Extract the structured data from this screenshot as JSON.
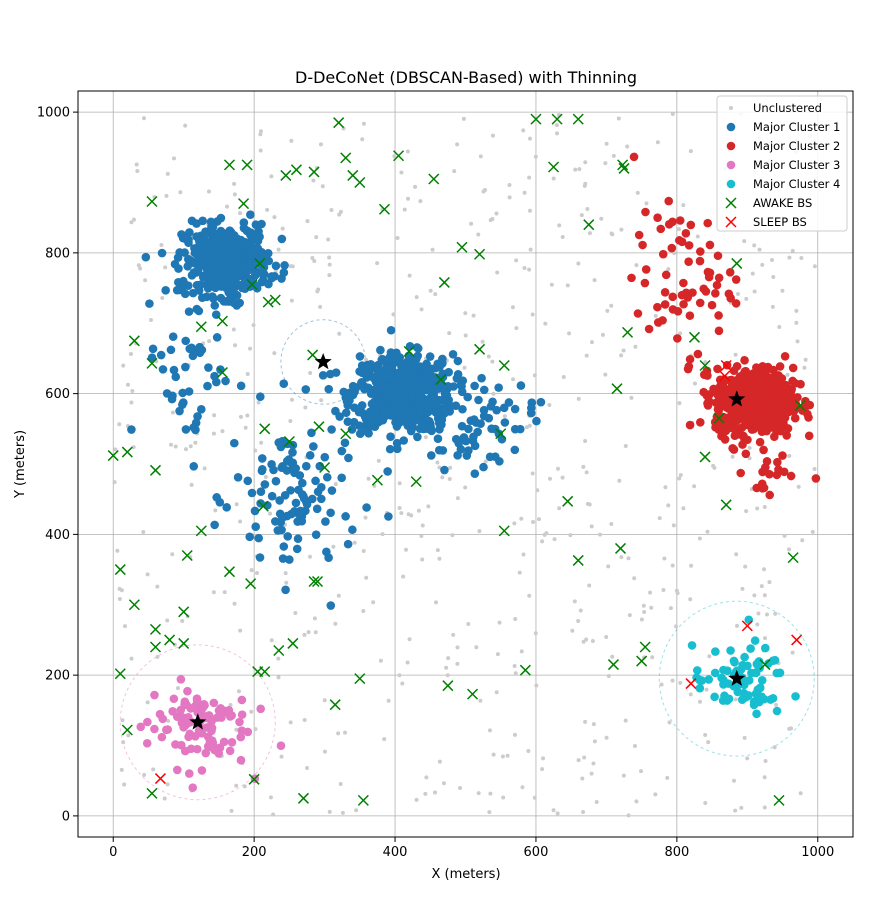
{
  "chart_data": {
    "type": "scatter",
    "title": "D-DeCoNet (DBSCAN-Based) with Thinning",
    "xlabel": "X (meters)",
    "ylabel": "Y (meters)",
    "xlim": [
      -50,
      1050
    ],
    "ylim": [
      -30,
      1030
    ],
    "xticks": [
      0,
      200,
      400,
      600,
      800,
      1000
    ],
    "yticks": [
      0,
      200,
      400,
      600,
      800,
      1000
    ],
    "grid": true,
    "legend_position": "top-right",
    "legend": [
      "Unclustered",
      "Major Cluster 1",
      "Major Cluster 2",
      "Major Cluster 3",
      "Major Cluster 4",
      "AWAKE BS",
      "SLEEP BS"
    ],
    "colors": {
      "unclustered": "#cccccc",
      "cluster1": "#1f77b4",
      "cluster2": "#d62728",
      "cluster3": "#e377c2",
      "cluster4": "#17becf",
      "awake": "#008000",
      "sleep": "#ff0000",
      "centroid": "#000000"
    },
    "clusters": [
      {
        "name": "Major Cluster 1",
        "color": "#1f77b4",
        "blobs": [
          {
            "center": [
              410,
              600
            ],
            "spread": [
              65,
              50
            ],
            "count": 520
          },
          {
            "center": [
              160,
              790
            ],
            "spread": [
              55,
              45
            ],
            "count": 420
          }
        ],
        "sparse": [
          {
            "center": [
              260,
              450
            ],
            "spread": [
              80,
              110
            ],
            "count": 110
          },
          {
            "center": [
              510,
              560
            ],
            "spread": [
              80,
              60
            ],
            "count": 70
          },
          {
            "center": [
              110,
              650
            ],
            "spread": [
              60,
              120
            ],
            "count": 50
          }
        ]
      },
      {
        "name": "Major Cluster 2",
        "color": "#d62728",
        "blobs": [
          {
            "center": [
              910,
              590
            ],
            "spread": [
              50,
              42
            ],
            "count": 600
          }
        ],
        "sparse": [
          {
            "center": [
              810,
              760
            ],
            "spread": [
              65,
              90
            ],
            "count": 65
          },
          {
            "center": [
              920,
              490
            ],
            "spread": [
              50,
              45
            ],
            "count": 20
          }
        ]
      },
      {
        "name": "Major Cluster 3",
        "color": "#e377c2",
        "blobs": [],
        "sparse": [
          {
            "center": [
              120,
              130
            ],
            "spread": [
              65,
              55
            ],
            "count": 95
          }
        ]
      },
      {
        "name": "Major Cluster 4",
        "color": "#17becf",
        "blobs": [],
        "sparse": [
          {
            "center": [
              890,
              190
            ],
            "spread": [
              60,
              45
            ],
            "count": 75
          }
        ]
      }
    ],
    "unclustered_count": 620,
    "centroids": [
      [
        298,
        645
      ],
      [
        885,
        592
      ],
      [
        120,
        133
      ],
      [
        885,
        195
      ]
    ],
    "coverage_circles": [
      {
        "center": [
          298,
          645
        ],
        "radius": 60,
        "color": "#1f77b4"
      },
      {
        "center": [
          120,
          133
        ],
        "radius": 110,
        "color": "#e377c2"
      },
      {
        "center": [
          885,
          195
        ],
        "radius": 110,
        "color": "#17becf"
      }
    ],
    "awake_bs": [
      [
        165,
        925
      ],
      [
        190,
        925
      ],
      [
        245,
        910
      ],
      [
        260,
        918
      ],
      [
        285,
        915
      ],
      [
        320,
        985
      ],
      [
        330,
        935
      ],
      [
        340,
        910
      ],
      [
        350,
        900
      ],
      [
        405,
        938
      ],
      [
        455,
        905
      ],
      [
        385,
        862
      ],
      [
        55,
        873
      ],
      [
        185,
        870
      ],
      [
        208,
        785
      ],
      [
        220,
        730
      ],
      [
        230,
        733
      ],
      [
        197,
        755
      ],
      [
        125,
        695
      ],
      [
        155,
        703
      ],
      [
        155,
        630
      ],
      [
        30,
        675
      ],
      [
        55,
        643
      ],
      [
        283,
        655
      ],
      [
        330,
        543
      ],
      [
        420,
        660
      ],
      [
        465,
        620
      ],
      [
        470,
        758
      ],
      [
        495,
        808
      ],
      [
        520,
        798
      ],
      [
        520,
        663
      ],
      [
        550,
        543
      ],
      [
        555,
        640
      ],
      [
        600,
        990
      ],
      [
        630,
        990
      ],
      [
        660,
        990
      ],
      [
        625,
        922
      ],
      [
        723,
        925
      ],
      [
        725,
        920
      ],
      [
        675,
        840
      ],
      [
        885,
        785
      ],
      [
        730,
        687
      ],
      [
        825,
        680
      ],
      [
        840,
        640
      ],
      [
        860,
        565
      ],
      [
        840,
        510
      ],
      [
        870,
        442
      ],
      [
        975,
        583
      ],
      [
        965,
        367
      ],
      [
        715,
        607
      ],
      [
        645,
        447
      ],
      [
        660,
        363
      ],
      [
        720,
        380
      ],
      [
        555,
        405
      ],
      [
        430,
        475
      ],
      [
        375,
        477
      ],
      [
        300,
        495
      ],
      [
        292,
        553
      ],
      [
        250,
        532
      ],
      [
        215,
        550
      ],
      [
        213,
        440
      ],
      [
        0,
        512
      ],
      [
        20,
        517
      ],
      [
        60,
        491
      ],
      [
        125,
        405
      ],
      [
        105,
        370
      ],
      [
        10,
        350
      ],
      [
        30,
        300
      ],
      [
        165,
        347
      ],
      [
        195,
        330
      ],
      [
        100,
        290
      ],
      [
        290,
        333
      ],
      [
        285,
        333
      ],
      [
        205,
        205
      ],
      [
        235,
        235
      ],
      [
        255,
        245
      ],
      [
        215,
        205
      ],
      [
        60,
        265
      ],
      [
        80,
        250
      ],
      [
        100,
        245
      ],
      [
        60,
        240
      ],
      [
        10,
        202
      ],
      [
        20,
        122
      ],
      [
        55,
        32
      ],
      [
        200,
        52
      ],
      [
        270,
        25
      ],
      [
        355,
        22
      ],
      [
        350,
        195
      ],
      [
        315,
        158
      ],
      [
        475,
        185
      ],
      [
        510,
        173
      ],
      [
        585,
        207
      ],
      [
        710,
        215
      ],
      [
        750,
        220
      ],
      [
        755,
        240
      ],
      [
        925,
        215
      ],
      [
        945,
        22
      ]
    ],
    "sleep_bs": [
      [
        67,
        53
      ],
      [
        820,
        188
      ],
      [
        900,
        270
      ],
      [
        970,
        250
      ],
      [
        870,
        640
      ],
      [
        868,
        625
      ]
    ]
  }
}
